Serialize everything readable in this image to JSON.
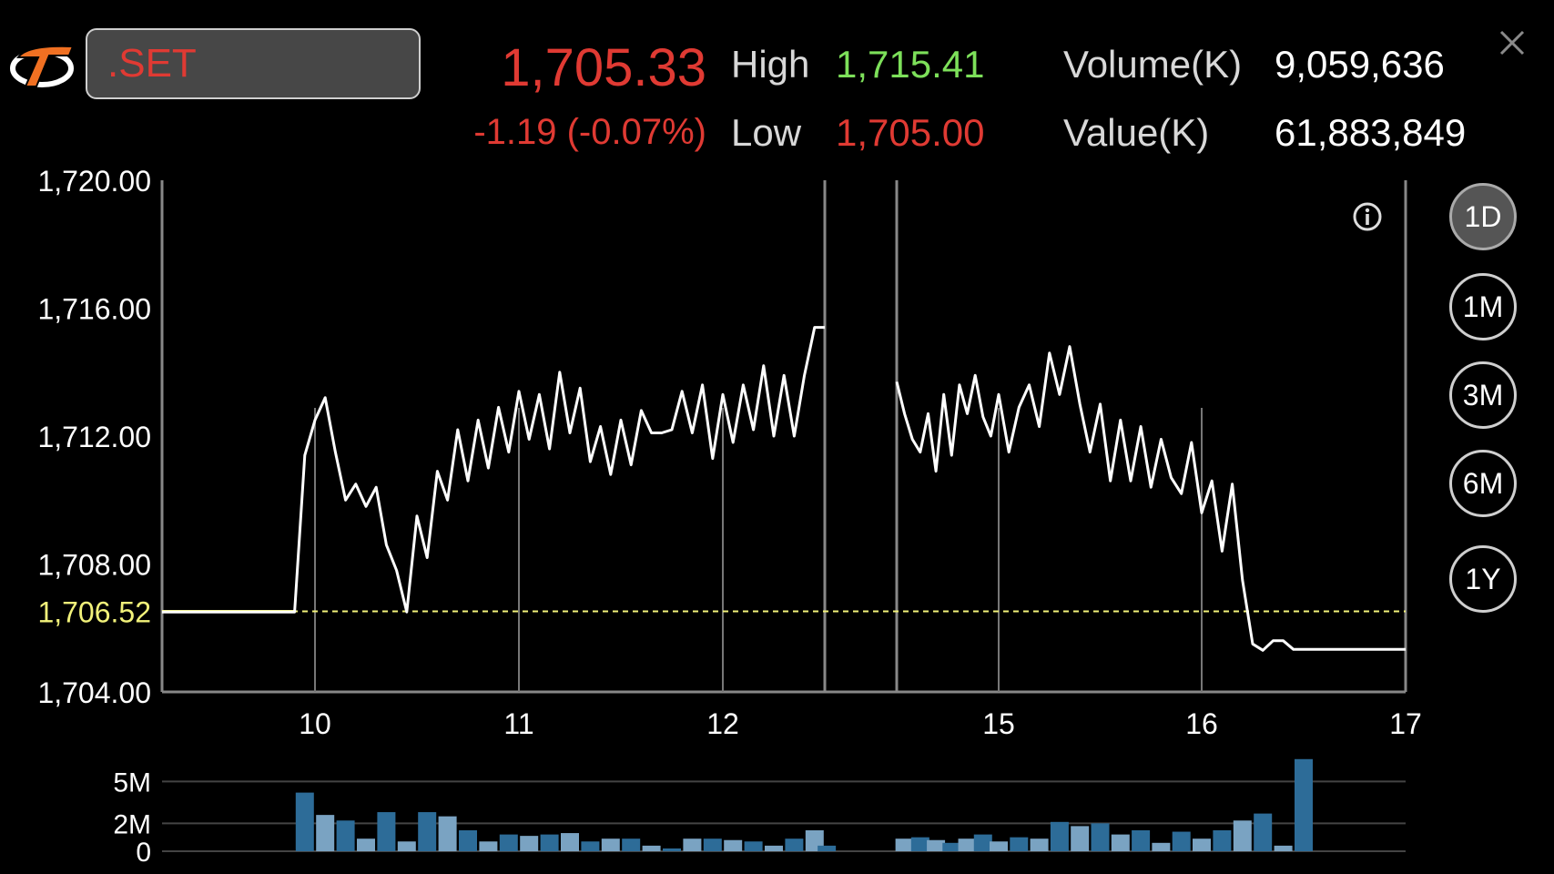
{
  "header": {
    "symbol": ".SET",
    "last_price": "1,705.33",
    "change": "-1.19 (-0.07%)",
    "high_label": "High",
    "high_value": "1,715.41",
    "low_label": "Low",
    "low_value": "1,705.00",
    "volume_label": "Volume(K)",
    "volume_value": "9,059,636",
    "value_label": "Value(K)",
    "value_value": "61,883,849"
  },
  "periods": [
    {
      "label": "1D",
      "active": true
    },
    {
      "label": "1M",
      "active": false
    },
    {
      "label": "3M",
      "active": false
    },
    {
      "label": "6M",
      "active": false
    },
    {
      "label": "1Y",
      "active": false
    }
  ],
  "icons": {
    "logo": "brand-logo-icon",
    "close": "close-icon",
    "info": "info-icon"
  },
  "colors": {
    "up": "#7de05a",
    "down": "#e03a33",
    "reference": "#f2f27a",
    "line": "#ffffff",
    "volume_dark": "#2d6c98",
    "volume_light": "#7aa3c2"
  },
  "chart_data": {
    "type": "line",
    "price": {
      "y_ticks": [
        "1,720.00",
        "1,716.00",
        "1,712.00",
        "1,708.00",
        "1,704.00"
      ],
      "y_tick_values": [
        1720,
        1716,
        1712,
        1708,
        1704
      ],
      "ylim": [
        1704,
        1720
      ],
      "reference_label": "1,706.52",
      "reference_value": 1706.52,
      "x_ticks": [
        "10",
        "11",
        "12",
        "15",
        "16",
        "17"
      ],
      "x_tick_values": [
        10,
        11,
        12,
        15,
        16,
        17
      ],
      "morning": {
        "x": [
          9.25,
          9.9,
          9.95,
          10.0,
          10.05,
          10.1,
          10.15,
          10.2,
          10.25,
          10.3,
          10.35,
          10.4,
          10.45,
          10.5,
          10.55,
          10.6,
          10.65,
          10.7,
          10.75,
          10.8,
          10.85,
          10.9,
          10.95,
          11.0,
          11.05,
          11.1,
          11.15,
          11.2,
          11.25,
          11.3,
          11.35,
          11.4,
          11.45,
          11.5,
          11.55,
          11.6,
          11.65,
          11.7,
          11.75,
          11.8,
          11.85,
          11.9,
          11.95,
          12.0,
          12.05,
          12.1,
          12.15,
          12.2,
          12.25,
          12.3,
          12.35,
          12.4,
          12.45,
          12.5
        ],
        "y": [
          1706.5,
          1706.5,
          1711.4,
          1712.5,
          1713.2,
          1711.5,
          1710.0,
          1710.5,
          1709.8,
          1710.4,
          1708.6,
          1707.8,
          1706.5,
          1709.5,
          1708.2,
          1710.9,
          1710.0,
          1712.2,
          1710.6,
          1712.5,
          1711.0,
          1712.9,
          1711.5,
          1713.4,
          1711.9,
          1713.3,
          1711.6,
          1714.0,
          1712.1,
          1713.5,
          1711.2,
          1712.3,
          1710.8,
          1712.5,
          1711.1,
          1712.8,
          1712.1,
          1712.1,
          1712.2,
          1713.4,
          1712.1,
          1713.6,
          1711.3,
          1713.3,
          1711.8,
          1713.6,
          1712.2,
          1714.2,
          1712.0,
          1713.9,
          1712.0,
          1713.9,
          1715.4,
          1715.4
        ]
      },
      "afternoon": {
        "x": [
          14.35,
          14.4,
          14.45,
          14.5,
          14.55,
          14.6,
          14.65,
          14.7,
          14.75,
          14.8,
          14.85,
          14.9,
          14.95,
          15.0,
          15.05,
          15.1,
          15.15,
          15.2,
          15.25,
          15.3,
          15.35,
          15.4,
          15.45,
          15.5,
          15.55,
          15.6,
          15.65,
          15.7,
          15.75,
          15.8,
          15.85,
          15.9,
          15.95,
          16.0,
          16.05,
          16.1,
          16.15,
          16.2,
          16.25,
          16.3,
          16.35,
          16.4,
          16.45,
          16.5,
          16.55,
          16.6,
          16.65,
          16.7,
          16.75,
          16.8,
          17.0
        ],
        "y": [
          1713.7,
          1712.7,
          1711.9,
          1711.5,
          1712.7,
          1710.9,
          1713.3,
          1711.4,
          1713.6,
          1712.7,
          1713.9,
          1712.6,
          1712.0,
          1713.3,
          1711.5,
          1712.9,
          1713.6,
          1712.3,
          1714.6,
          1713.3,
          1714.8,
          1713.0,
          1711.5,
          1713.0,
          1710.6,
          1712.5,
          1710.6,
          1712.3,
          1710.4,
          1711.9,
          1710.7,
          1710.2,
          1711.8,
          1709.6,
          1710.6,
          1708.4,
          1710.5,
          1707.5,
          1705.5,
          1705.3,
          1705.6,
          1705.6,
          1705.33,
          1705.33,
          1705.33,
          1705.33,
          1705.33,
          1705.33,
          1705.33,
          1705.33,
          1705.33
        ]
      }
    },
    "volume": {
      "y_ticks": [
        "5M",
        "2M",
        "0"
      ],
      "y_tick_values": [
        5,
        2,
        0
      ],
      "ylim": [
        0,
        6
      ],
      "bars": [
        {
          "x": 9.95,
          "v": 4.2
        },
        {
          "x": 10.05,
          "v": 2.6
        },
        {
          "x": 10.15,
          "v": 2.2
        },
        {
          "x": 10.25,
          "v": 0.9
        },
        {
          "x": 10.35,
          "v": 2.8
        },
        {
          "x": 10.45,
          "v": 0.7
        },
        {
          "x": 10.55,
          "v": 2.8
        },
        {
          "x": 10.65,
          "v": 2.5
        },
        {
          "x": 10.75,
          "v": 1.5
        },
        {
          "x": 10.85,
          "v": 0.7
        },
        {
          "x": 10.95,
          "v": 1.2
        },
        {
          "x": 11.05,
          "v": 1.1
        },
        {
          "x": 11.15,
          "v": 1.2
        },
        {
          "x": 11.25,
          "v": 1.3
        },
        {
          "x": 11.35,
          "v": 0.7
        },
        {
          "x": 11.45,
          "v": 0.9
        },
        {
          "x": 11.55,
          "v": 0.9
        },
        {
          "x": 11.65,
          "v": 0.4
        },
        {
          "x": 11.75,
          "v": 0.2
        },
        {
          "x": 11.85,
          "v": 0.9
        },
        {
          "x": 11.95,
          "v": 0.9
        },
        {
          "x": 12.05,
          "v": 0.8
        },
        {
          "x": 12.15,
          "v": 0.7
        },
        {
          "x": 12.25,
          "v": 0.4
        },
        {
          "x": 12.35,
          "v": 0.9
        },
        {
          "x": 12.45,
          "v": 1.5
        },
        {
          "x": 12.55,
          "v": 0.4
        },
        {
          "x": 14.4,
          "v": 0.9
        },
        {
          "x": 14.5,
          "v": 1.0
        },
        {
          "x": 14.6,
          "v": 0.8
        },
        {
          "x": 14.7,
          "v": 0.6
        },
        {
          "x": 14.8,
          "v": 0.9
        },
        {
          "x": 14.9,
          "v": 1.2
        },
        {
          "x": 15.0,
          "v": 0.7
        },
        {
          "x": 15.1,
          "v": 1.0
        },
        {
          "x": 15.2,
          "v": 0.9
        },
        {
          "x": 15.3,
          "v": 2.1
        },
        {
          "x": 15.4,
          "v": 1.8
        },
        {
          "x": 15.5,
          "v": 2.0
        },
        {
          "x": 15.6,
          "v": 1.2
        },
        {
          "x": 15.7,
          "v": 1.5
        },
        {
          "x": 15.8,
          "v": 0.6
        },
        {
          "x": 15.9,
          "v": 1.4
        },
        {
          "x": 16.0,
          "v": 0.9
        },
        {
          "x": 16.1,
          "v": 1.5
        },
        {
          "x": 16.2,
          "v": 2.2
        },
        {
          "x": 16.3,
          "v": 2.7
        },
        {
          "x": 16.4,
          "v": 0.4
        },
        {
          "x": 16.5,
          "v": 6.8
        }
      ]
    }
  }
}
